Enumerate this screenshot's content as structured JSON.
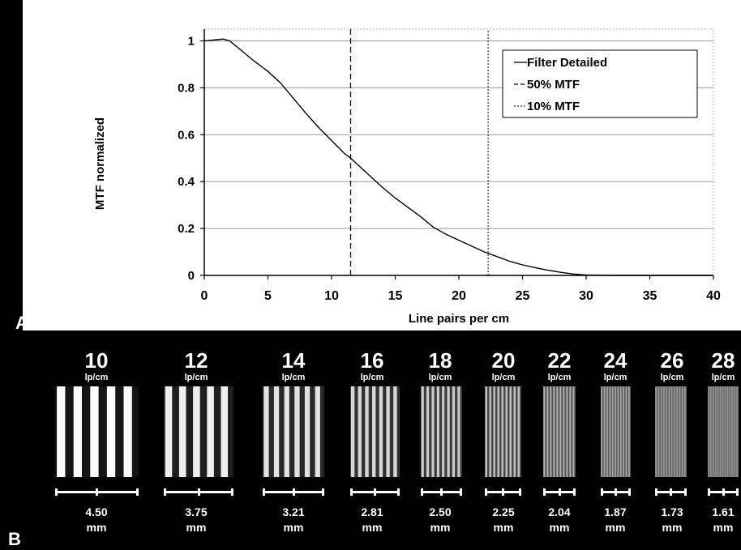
{
  "panel_a": {
    "letter": "A"
  },
  "panel_b": {
    "letter": "B",
    "unit_label": "lp/cm",
    "mm_label": "mm",
    "patterns": [
      {
        "freq": "10",
        "size": "4.50"
      },
      {
        "freq": "12",
        "size": "3.75"
      },
      {
        "freq": "14",
        "size": "3.21"
      },
      {
        "freq": "16",
        "size": "2.81"
      },
      {
        "freq": "18",
        "size": "2.50"
      },
      {
        "freq": "20",
        "size": "2.25"
      },
      {
        "freq": "22",
        "size": "2.04"
      },
      {
        "freq": "24",
        "size": "1.87"
      },
      {
        "freq": "26",
        "size": "1.73"
      },
      {
        "freq": "28",
        "size": "1.61"
      }
    ]
  },
  "chart_data": {
    "type": "line",
    "xlabel": "Line pairs per cm",
    "ylabel": "MTF normalized",
    "xlim": [
      0,
      40
    ],
    "ylim": [
      0,
      1.05
    ],
    "xticks": [
      0,
      5,
      10,
      15,
      20,
      25,
      30,
      35,
      40
    ],
    "yticks": [
      0,
      0.2,
      0.4,
      0.6,
      0.8,
      1
    ],
    "ytick_labels": [
      "0",
      "0.2",
      "0.4",
      "0.6",
      "0.8",
      "1"
    ],
    "xtick_labels": [
      "0",
      "5",
      "10",
      "15",
      "20",
      "25",
      "30",
      "35",
      "40"
    ],
    "grid": "horizontal",
    "legend_position": "top-right",
    "series": [
      {
        "name": "Filter Detailed",
        "style": "solid",
        "x": [
          0,
          1,
          1.5,
          2,
          3,
          4,
          5,
          6,
          7,
          8,
          9,
          10,
          11,
          11.5,
          12,
          13,
          14,
          15,
          16,
          17,
          18,
          19,
          20,
          21,
          22,
          23,
          24,
          25,
          26,
          27,
          28,
          29,
          30,
          31,
          32,
          33,
          34,
          35,
          36,
          38,
          40
        ],
        "y": [
          1.0,
          1.005,
          1.008,
          1.0,
          0.955,
          0.91,
          0.87,
          0.82,
          0.755,
          0.69,
          0.63,
          0.575,
          0.52,
          0.5,
          0.475,
          0.425,
          0.375,
          0.33,
          0.29,
          0.25,
          0.205,
          0.175,
          0.15,
          0.125,
          0.1,
          0.08,
          0.06,
          0.045,
          0.033,
          0.022,
          0.013,
          0.006,
          0.002,
          0.001,
          0,
          0,
          0,
          0,
          0,
          0,
          0
        ]
      },
      {
        "name": "50% MTF",
        "style": "dashed",
        "x": [
          11.5,
          11.5
        ],
        "y": [
          0,
          1.05
        ]
      },
      {
        "name": "10% MTF",
        "style": "dotted",
        "x": [
          22.3,
          22.3
        ],
        "y": [
          0,
          1.05
        ]
      }
    ]
  }
}
